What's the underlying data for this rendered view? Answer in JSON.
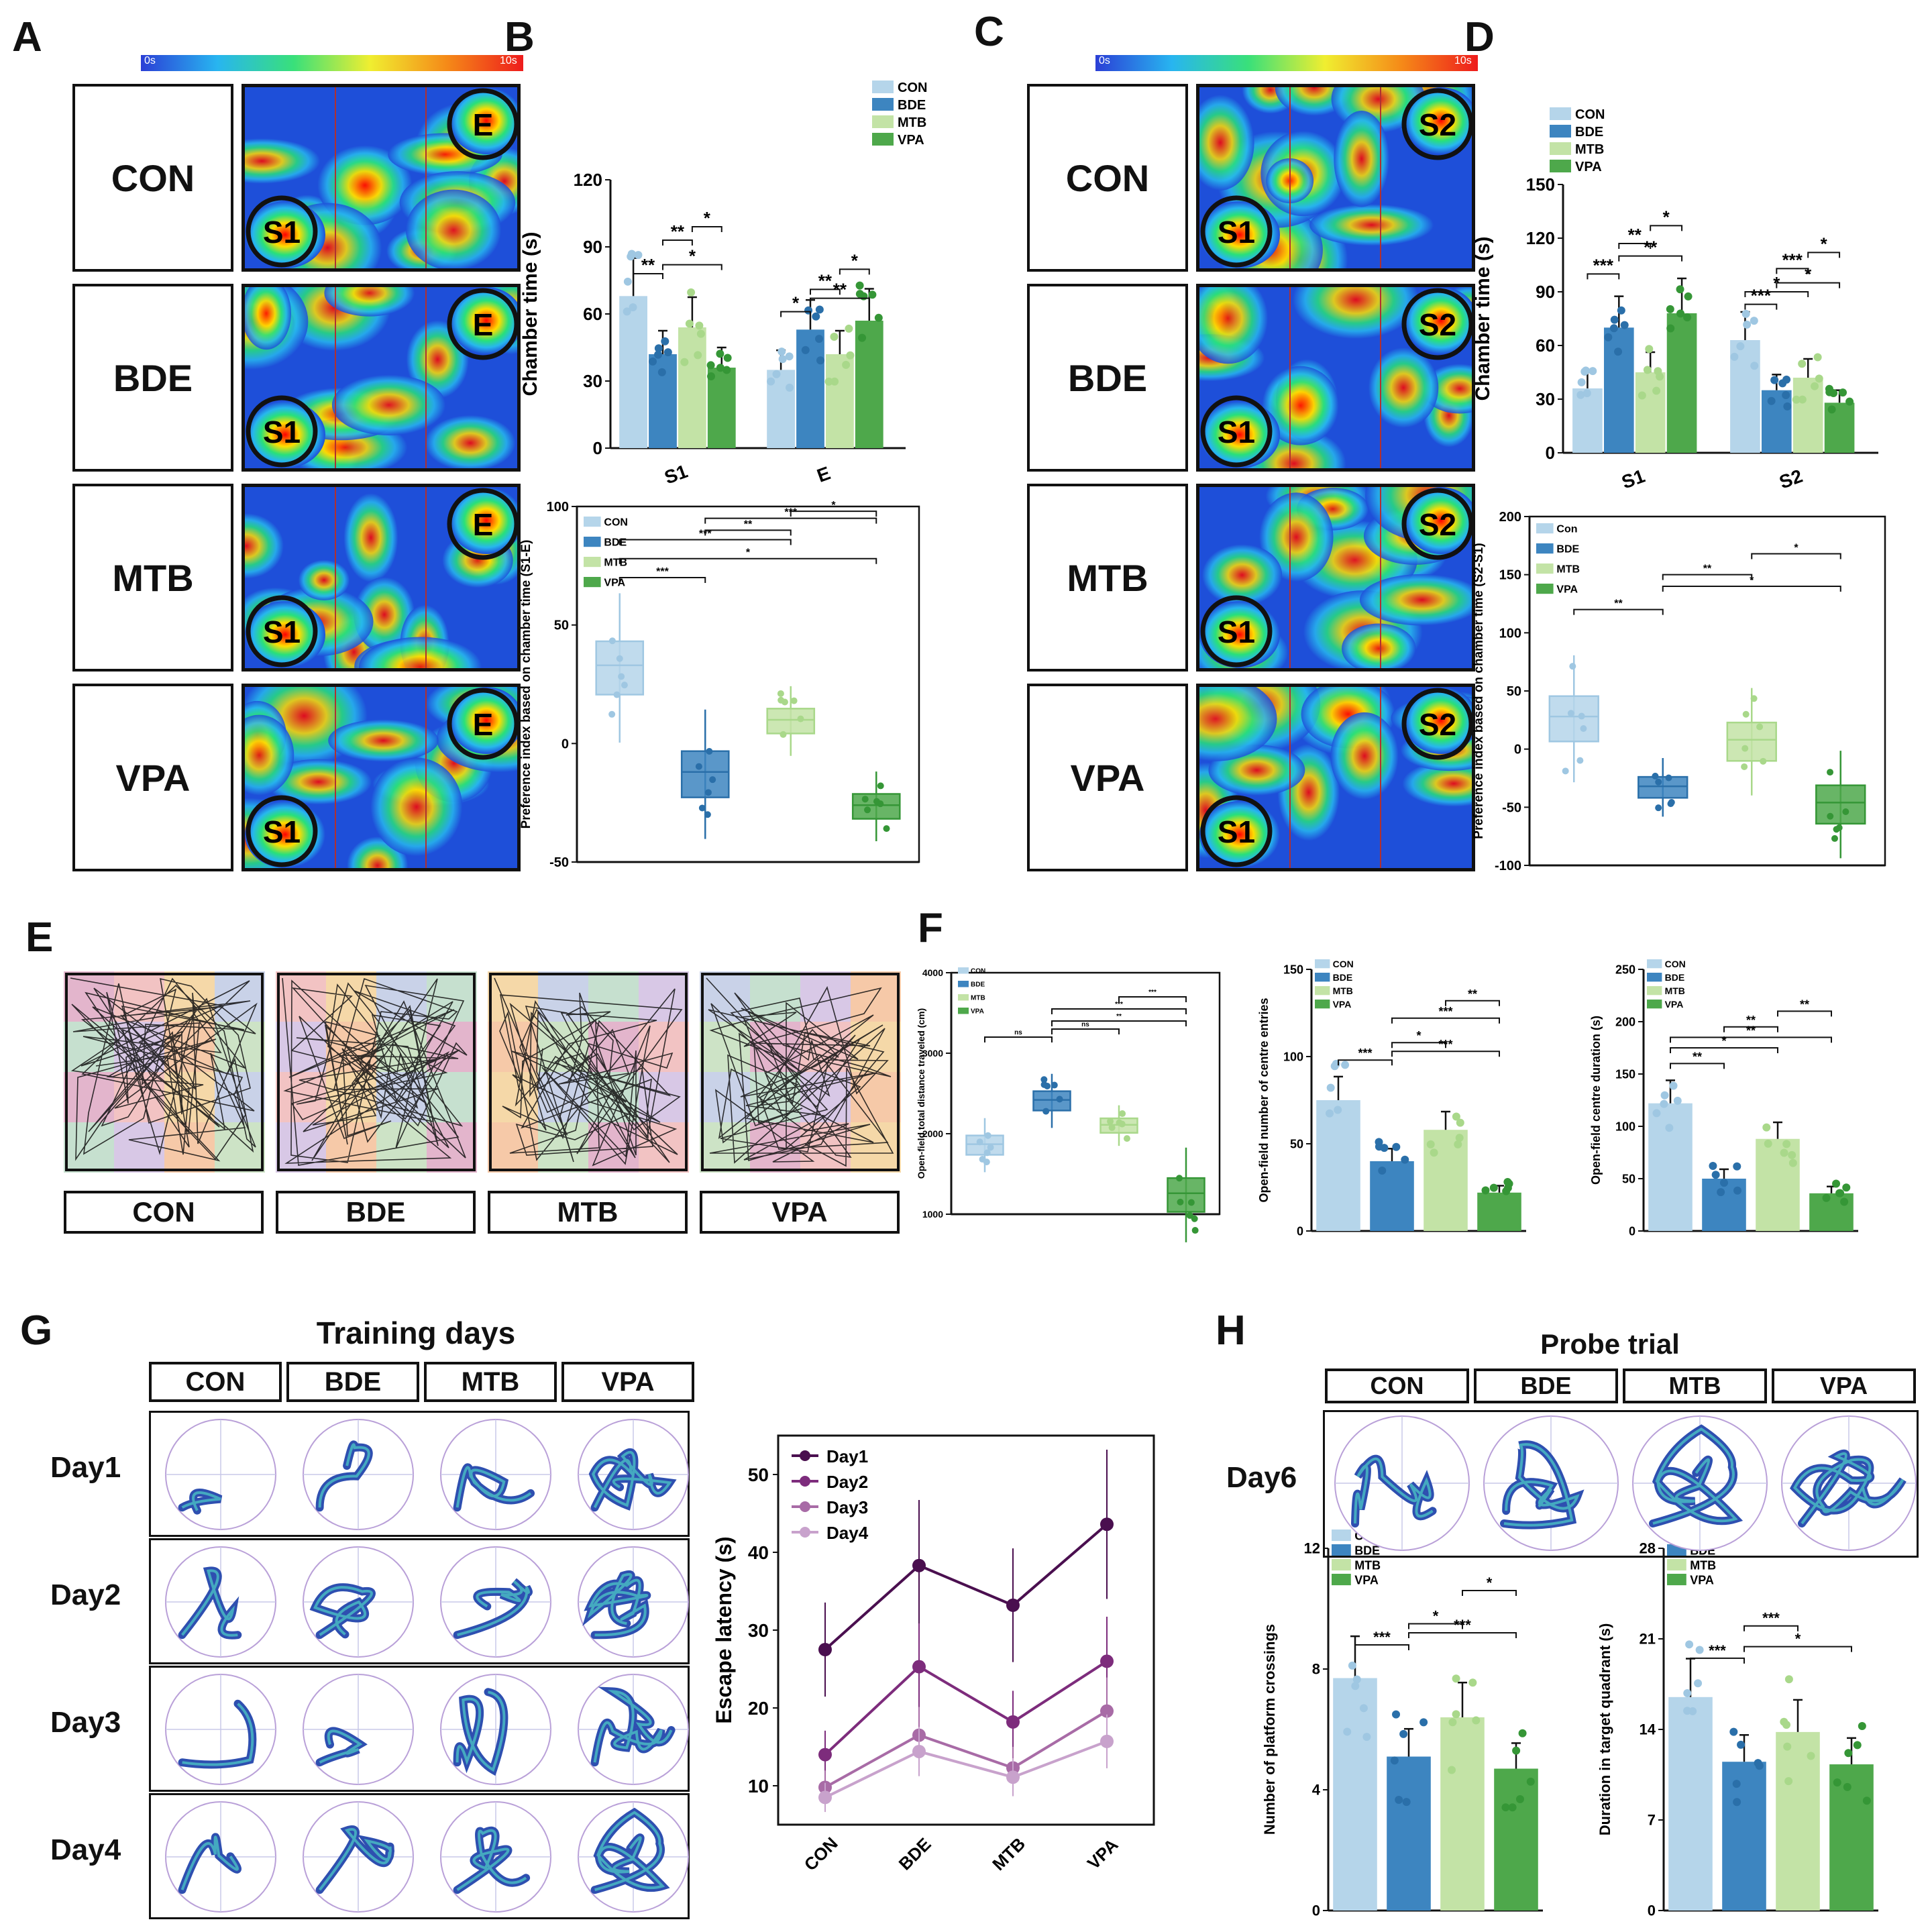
{
  "panels": {
    "A": "A",
    "B": "B",
    "C": "C",
    "D": "D",
    "E": "E",
    "F": "F",
    "G": "G",
    "H": "H"
  },
  "colors": {
    "con": "#b5d5ea",
    "bde": "#3d85c0",
    "mtb": "#c3e3a6",
    "vpa": "#4ea84b",
    "con_dot": "#9fc7e2",
    "bde_dot": "#2a6fa9",
    "mtb_dot": "#a9d88a",
    "vpa_dot": "#359636"
  },
  "groups": [
    "CON",
    "BDE",
    "MTB",
    "VPA"
  ],
  "heat": {
    "scale_min": "0s",
    "scale_max": "10s",
    "s1": "S1",
    "e": "E",
    "s2": "S2"
  },
  "titles": {
    "training": "Training days",
    "probe": "Probe trial"
  },
  "days": [
    "Day1",
    "Day2",
    "Day3",
    "Day4"
  ],
  "probe_day": "Day6",
  "chart_data": [
    {
      "id": "B-top",
      "type": "bar",
      "ylabel": "Chamber time (s)",
      "ylim": [
        0,
        120
      ],
      "yticks": [
        "0",
        "30",
        "60",
        "90",
        "120"
      ],
      "categories": [
        "S1",
        "E"
      ],
      "legend": [
        "CON",
        "BDE",
        "MTB",
        "VPA"
      ],
      "series": [
        {
          "name": "CON",
          "values": [
            68,
            35
          ]
        },
        {
          "name": "BDE",
          "values": [
            42,
            53
          ]
        },
        {
          "name": "MTB",
          "values": [
            54,
            42
          ]
        },
        {
          "name": "VPA",
          "values": [
            36,
            57
          ]
        }
      ],
      "sig": [
        "**",
        "*",
        "**",
        "*",
        "*",
        "**",
        "**",
        "*"
      ]
    },
    {
      "id": "B-bottom",
      "type": "box",
      "ylabel": "Preference index based on chamber time (S1-E)",
      "ylim": [
        -50,
        100
      ],
      "yticks": [
        "-50",
        "0",
        "50",
        "100"
      ],
      "legend": [
        "CON",
        "BDE",
        "MTB",
        "VPA"
      ],
      "medians": [
        33,
        -12,
        10,
        -26
      ],
      "sig": [
        "***",
        "*",
        "***",
        "**",
        "***"
      ]
    },
    {
      "id": "D-top",
      "type": "bar",
      "ylabel": "Chamber time (s)",
      "ylim": [
        0,
        150
      ],
      "yticks": [
        "0",
        "30",
        "60",
        "90",
        "120",
        "150"
      ],
      "categories": [
        "S1",
        "S2"
      ],
      "legend": [
        "CON",
        "BDE",
        "MTB",
        "VPA"
      ],
      "series": [
        {
          "name": "CON",
          "values": [
            36,
            63
          ]
        },
        {
          "name": "BDE",
          "values": [
            70,
            35
          ]
        },
        {
          "name": "MTB",
          "values": [
            45,
            42
          ]
        },
        {
          "name": "VPA",
          "values": [
            78,
            28
          ]
        }
      ],
      "sig": [
        "***",
        "**",
        "*",
        "**",
        "***",
        "*",
        "*",
        "***",
        "*"
      ]
    },
    {
      "id": "D-bottom",
      "type": "box",
      "ylabel": "Preference index based on chamber time (S2-S1)",
      "ylim": [
        -100,
        200
      ],
      "yticks": [
        "-100",
        "-50",
        "0",
        "50",
        "100",
        "150",
        "200"
      ],
      "legend": [
        "Con",
        "BDE",
        "MTB",
        "VPA"
      ],
      "medians": [
        28,
        -32,
        8,
        -46
      ],
      "sig": [
        "**",
        "*",
        "**",
        "*"
      ]
    },
    {
      "id": "F-1",
      "type": "box",
      "ylabel": "Open-field total distance traveled (cm)",
      "ylim": [
        1000,
        4000
      ],
      "yticks": [
        "1000",
        "2000",
        "3000",
        "4000"
      ],
      "legend": [
        "CON",
        "BDE",
        "MTB",
        "VPA"
      ],
      "medians": [
        1870,
        2420,
        2110,
        1260
      ],
      "sig": [
        "ns",
        "ns",
        "**",
        "***",
        "***"
      ]
    },
    {
      "id": "F-2",
      "type": "bar",
      "ylabel": "Open-field number of centre entries",
      "ylim": [
        0,
        150
      ],
      "yticks": [
        "0",
        "50",
        "100",
        "150"
      ],
      "legend": [
        "CON",
        "BDE",
        "MTB",
        "VPA"
      ],
      "values": [
        75,
        40,
        58,
        22
      ],
      "sig": [
        "***",
        "*",
        "***",
        "**",
        "***"
      ]
    },
    {
      "id": "F-3",
      "type": "bar",
      "ylabel": "Open-field centre duration (s)",
      "ylim": [
        0,
        250
      ],
      "yticks": [
        "0",
        "50",
        "100",
        "150",
        "200",
        "250"
      ],
      "legend": [
        "CON",
        "BDE",
        "MTB",
        "VPA"
      ],
      "values": [
        122,
        50,
        88,
        36
      ],
      "sig": [
        "**",
        "*",
        "**",
        "**",
        "**"
      ]
    },
    {
      "id": "G-line",
      "type": "line",
      "ylabel": "Escape latency (s)",
      "ylim": [
        5,
        55
      ],
      "yticks": [
        "10",
        "20",
        "30",
        "40",
        "50"
      ],
      "categories": [
        "CON",
        "BDE",
        "MTB",
        "VPA"
      ],
      "series": [
        {
          "name": "Day1",
          "values": [
            27.5,
            38.3,
            33.2,
            43.6
          ]
        },
        {
          "name": "Day2",
          "values": [
            14,
            25.3,
            18.2,
            26
          ]
        },
        {
          "name": "Day3",
          "values": [
            9.8,
            16.5,
            12.3,
            19.6
          ]
        },
        {
          "name": "Day4",
          "values": [
            8.5,
            14.4,
            11.1,
            15.7
          ]
        }
      ]
    },
    {
      "id": "H-1",
      "type": "bar",
      "ylabel": "Number of platform crossings",
      "ylim": [
        0,
        12
      ],
      "yticks": [
        "0",
        "4",
        "8",
        "12"
      ],
      "legend": [
        "CON",
        "BDE",
        "MTB",
        "VPA"
      ],
      "values": [
        7.7,
        5.1,
        6.4,
        4.7
      ],
      "sig": [
        "***",
        "*",
        "***",
        "*"
      ]
    },
    {
      "id": "H-2",
      "type": "bar",
      "ylabel": "Duration in target quadrant (s)",
      "ylim": [
        0,
        28
      ],
      "yticks": [
        "0",
        "7",
        "14",
        "21",
        "28"
      ],
      "legend": [
        "CON",
        "BDE",
        "MTB",
        "VPA"
      ],
      "values": [
        16.5,
        11.5,
        13.8,
        11.3
      ],
      "sig": [
        "***",
        "*",
        "***"
      ]
    }
  ]
}
